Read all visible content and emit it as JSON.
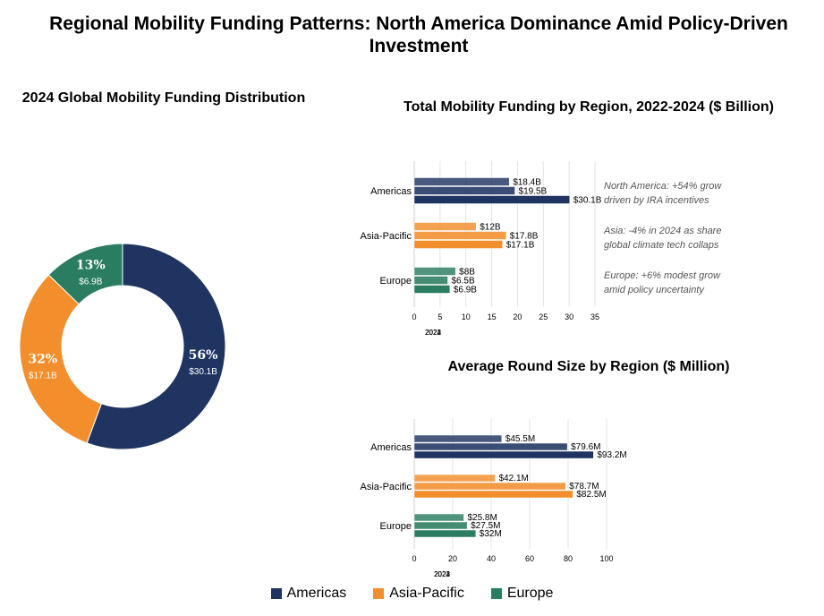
{
  "title_line1": "Regional Mobility Funding Patterns: North America Dominance Amid Policy-Driven",
  "title_line2": "Investment",
  "colors": {
    "Americas": "#1f3461",
    "Asia-Pacific": "#f28e2b",
    "Europe": "#2a7d60"
  },
  "legend": [
    "Americas",
    "Asia-Pacific",
    "Europe"
  ],
  "chart_data": [
    {
      "type": "pie",
      "donut": true,
      "title": "2024 Global Mobility Funding Distribution",
      "slices": [
        {
          "name": "Americas",
          "value": 30.1,
          "pct_label": "56%",
          "amount_label": "$30.1B"
        },
        {
          "name": "Asia-Pacific",
          "value": 17.1,
          "pct_label": "32%",
          "amount_label": "$17.1B"
        },
        {
          "name": "Europe",
          "value": 6.9,
          "pct_label": "13%",
          "amount_label": "$6.9B"
        }
      ]
    },
    {
      "type": "bar",
      "orientation": "horizontal",
      "title": "Total Mobility Funding by Region, 2022-2024 ($ Billion)",
      "categories": [
        "Americas",
        "Asia-Pacific",
        "Europe"
      ],
      "series": [
        {
          "name": "2022",
          "values": [
            18.4,
            12,
            8
          ],
          "labels": [
            "$18.4B",
            "$12B",
            "$8B"
          ]
        },
        {
          "name": "2023",
          "values": [
            19.5,
            17.8,
            6.5
          ],
          "labels": [
            "$19.5B",
            "$17.8B",
            "$6.5B"
          ]
        },
        {
          "name": "2024",
          "values": [
            30.1,
            17.1,
            6.9
          ],
          "labels": [
            "$30.1B",
            "$17.1B",
            "$6.9B"
          ]
        }
      ],
      "xlim": [
        0,
        35
      ],
      "xticks": [
        0,
        5,
        10,
        15,
        20,
        25,
        30,
        35
      ],
      "grid": true,
      "annotations": [
        [
          "North America: +54% grow",
          "driven by IRA incentives"
        ],
        [
          "Asia: -4% in 2024 as share",
          "global climate tech collaps"
        ],
        [
          "Europe: +6% modest grow",
          "amid policy uncertainty"
        ]
      ]
    },
    {
      "type": "bar",
      "orientation": "horizontal",
      "title": "Average Round Size by Region ($ Million)",
      "categories": [
        "Americas",
        "Asia-Pacific",
        "Europe"
      ],
      "series": [
        {
          "name": "2022",
          "values": [
            45.5,
            42.1,
            25.8
          ],
          "labels": [
            "$45.5M",
            "$42.1M",
            "$25.8M"
          ]
        },
        {
          "name": "2023",
          "values": [
            79.6,
            78.7,
            27.5
          ],
          "labels": [
            "$79.6M",
            "$78.7M",
            "$27.5M"
          ]
        },
        {
          "name": "2024",
          "values": [
            93.2,
            82.5,
            32
          ],
          "labels": [
            "$93.2M",
            "$82.5M",
            "$32M"
          ]
        }
      ],
      "xlim": [
        0,
        100
      ],
      "xticks": [
        0,
        20,
        40,
        60,
        80,
        100
      ],
      "grid": true
    }
  ]
}
